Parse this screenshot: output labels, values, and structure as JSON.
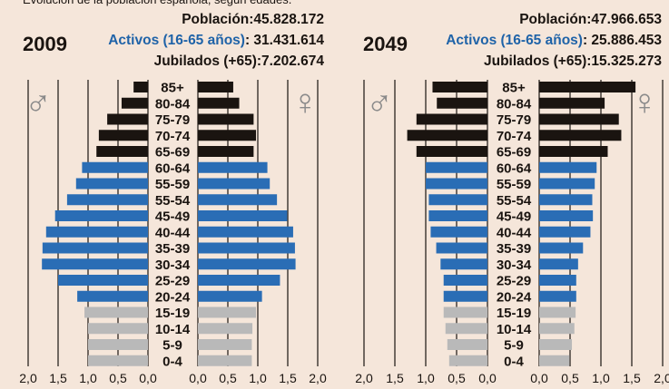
{
  "chart_data": [
    {
      "type": "pyramid",
      "subtitle": "Evolución de la población española, según edades.",
      "title": "2009",
      "stats": [
        {
          "label": "Población:",
          "value": "45.828.172"
        },
        {
          "label": "Activos (16-65 años)",
          "value": ": 31.431.614",
          "color": "#1f63a8"
        },
        {
          "label": "Jubilados (+65):",
          "value": "7.202.674"
        }
      ],
      "categories": [
        "85+",
        "80-84",
        "75-79",
        "70-74",
        "65-69",
        "60-64",
        "55-59",
        "55-54",
        "45-49",
        "40-44",
        "35-39",
        "30-34",
        "25-29",
        "20-24",
        "15-19",
        "10-14",
        "5-9",
        "0-4"
      ],
      "bar_colors": [
        "#1a1410",
        "#1a1410",
        "#1a1410",
        "#1a1410",
        "#1a1410",
        "#2a6db5",
        "#2a6db5",
        "#2a6db5",
        "#2a6db5",
        "#2a6db5",
        "#2a6db5",
        "#2a6db5",
        "#2a6db5",
        "#2a6db5",
        "#b9b9b9",
        "#b9b9b9",
        "#b9b9b9",
        "#b9b9b9"
      ],
      "series": [
        {
          "name": "♂",
          "side": "left",
          "values": [
            0.24,
            0.44,
            0.68,
            0.82,
            0.86,
            1.1,
            1.2,
            1.35,
            1.55,
            1.7,
            1.76,
            1.77,
            1.5,
            1.18,
            1.06,
            1.0,
            1.0,
            1.0
          ]
        },
        {
          "name": "♀",
          "side": "right",
          "values": [
            0.59,
            0.69,
            0.93,
            0.97,
            0.93,
            1.16,
            1.2,
            1.32,
            1.49,
            1.59,
            1.62,
            1.63,
            1.37,
            1.07,
            0.97,
            0.91,
            0.9,
            0.9
          ]
        }
      ],
      "xlim": [
        0,
        2
      ],
      "xticks_left": [
        {
          "value": 2,
          "label": "2,0"
        },
        {
          "value": 1.5,
          "label": "1,5"
        },
        {
          "value": 1,
          "label": "1,0"
        },
        {
          "value": 0.5,
          "label": "0,5"
        },
        {
          "value": 0,
          "label": "0,0"
        }
      ],
      "xticks_right": [
        {
          "value": 0,
          "label": "0,0"
        },
        {
          "value": 0.5,
          "label": "0,5"
        },
        {
          "value": 1,
          "label": "1,0"
        },
        {
          "value": 1.5,
          "label": "1,5"
        },
        {
          "value": 2,
          "label": "2,0"
        }
      ]
    },
    {
      "type": "pyramid",
      "title": "2049",
      "stats": [
        {
          "label": "Población:",
          "value": "47.966.653"
        },
        {
          "label": "Activos (16-65 años)",
          "value": ": 25.886.453",
          "color": "#1f63a8"
        },
        {
          "label": "Jubilados (+65):",
          "value": "15.325.273"
        }
      ],
      "categories": [
        "85+",
        "80-84",
        "75-79",
        "70-74",
        "65-69",
        "60-64",
        "55-59",
        "55-54",
        "45-49",
        "40-44",
        "35-39",
        "30-34",
        "25-29",
        "20-24",
        "15-19",
        "10-14",
        "5-9",
        "0-4"
      ],
      "bar_colors": [
        "#1a1410",
        "#1a1410",
        "#1a1410",
        "#1a1410",
        "#1a1410",
        "#2a6db5",
        "#2a6db5",
        "#2a6db5",
        "#2a6db5",
        "#2a6db5",
        "#2a6db5",
        "#2a6db5",
        "#2a6db5",
        "#2a6db5",
        "#b9b9b9",
        "#b9b9b9",
        "#b9b9b9",
        "#b9b9b9"
      ],
      "series": [
        {
          "name": "♂",
          "side": "left",
          "values": [
            0.89,
            0.82,
            1.15,
            1.3,
            1.15,
            1.0,
            1.0,
            0.95,
            0.95,
            0.92,
            0.83,
            0.76,
            0.71,
            0.71,
            0.71,
            0.68,
            0.65,
            0.62
          ]
        },
        {
          "name": "♀",
          "side": "right",
          "values": [
            1.56,
            1.06,
            1.29,
            1.33,
            1.11,
            0.93,
            0.9,
            0.86,
            0.87,
            0.83,
            0.71,
            0.63,
            0.6,
            0.6,
            0.59,
            0.57,
            0.53,
            0.49
          ]
        }
      ],
      "xlim": [
        0,
        2
      ],
      "xticks_left": [
        {
          "value": 2,
          "label": "2,0"
        },
        {
          "value": 1.5,
          "label": "1,5"
        },
        {
          "value": 1,
          "label": "1,0"
        },
        {
          "value": 0.5,
          "label": "0,5"
        },
        {
          "value": 0,
          "label": "0,0"
        }
      ],
      "xticks_right": [
        {
          "value": 0,
          "label": "0,0"
        },
        {
          "value": 0.5,
          "label": "0,5"
        },
        {
          "value": 1,
          "label": "1,0"
        },
        {
          "value": 1.5,
          "label": "1,5"
        },
        {
          "value": 2,
          "label": "2,0"
        }
      ]
    }
  ]
}
